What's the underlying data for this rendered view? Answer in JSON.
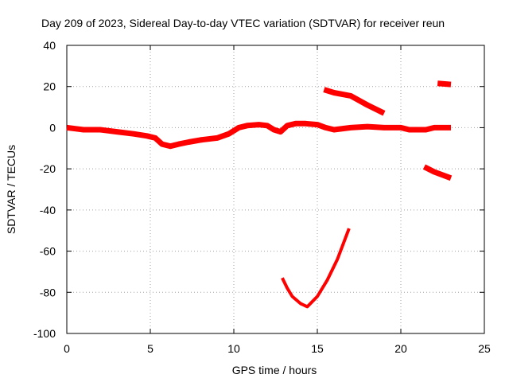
{
  "chart_data": {
    "type": "line",
    "title": "Day 209 of 2023, Sidereal Day-to-day VTEC variation (SDTVAR) for receiver reun",
    "xlabel": "GPS time / hours",
    "ylabel": "SDTVAR / TECUs",
    "xlim": [
      0,
      25
    ],
    "ylim": [
      -100,
      40
    ],
    "xticks": [
      0,
      5,
      10,
      15,
      20,
      25
    ],
    "yticks": [
      -100,
      -80,
      -60,
      -40,
      -20,
      0,
      20,
      40
    ],
    "grid": true,
    "color": "#ff0000",
    "series": [
      {
        "name": "main",
        "points": [
          [
            0,
            0
          ],
          [
            0.5,
            -0.5
          ],
          [
            1,
            -1
          ],
          [
            2,
            -1
          ],
          [
            3,
            -2
          ],
          [
            4,
            -3
          ],
          [
            4.8,
            -4
          ],
          [
            5.3,
            -5
          ],
          [
            5.7,
            -8
          ],
          [
            6.2,
            -9
          ],
          [
            6.7,
            -8
          ],
          [
            7.3,
            -7
          ],
          [
            8,
            -6
          ],
          [
            9,
            -5
          ],
          [
            9.7,
            -3
          ],
          [
            10.3,
            0
          ],
          [
            10.8,
            1
          ],
          [
            11.5,
            1.5
          ],
          [
            12,
            1
          ],
          [
            12.4,
            -1
          ],
          [
            12.8,
            -2
          ],
          [
            13.2,
            1
          ],
          [
            13.7,
            2
          ],
          [
            14.3,
            2
          ],
          [
            15,
            1.5
          ],
          [
            15.5,
            0
          ],
          [
            16,
            -1
          ],
          [
            17,
            0
          ],
          [
            18,
            0.5
          ],
          [
            19,
            0
          ],
          [
            20,
            0
          ],
          [
            20.5,
            -1
          ],
          [
            21,
            -1
          ],
          [
            21.5,
            -1
          ],
          [
            22,
            0
          ],
          [
            22.5,
            0
          ],
          [
            23,
            0
          ]
        ]
      },
      {
        "name": "upper-1",
        "points": [
          [
            15.4,
            18.5
          ],
          [
            16,
            17
          ],
          [
            17,
            15.5
          ],
          [
            18,
            11
          ],
          [
            19,
            7
          ]
        ]
      },
      {
        "name": "upper-2",
        "points": [
          [
            22.2,
            21.5
          ],
          [
            23,
            21
          ]
        ]
      },
      {
        "name": "lower-1",
        "points": [
          [
            21.4,
            -19
          ],
          [
            22,
            -21.5
          ],
          [
            23,
            -24.5
          ]
        ]
      },
      {
        "name": "dip",
        "points": [
          [
            12.9,
            -73
          ],
          [
            13.2,
            -78
          ],
          [
            13.5,
            -82
          ],
          [
            14,
            -85.5
          ],
          [
            14.4,
            -87
          ],
          [
            15,
            -82
          ],
          [
            15.6,
            -74
          ],
          [
            16.2,
            -64
          ],
          [
            16.9,
            -49
          ]
        ]
      }
    ]
  }
}
